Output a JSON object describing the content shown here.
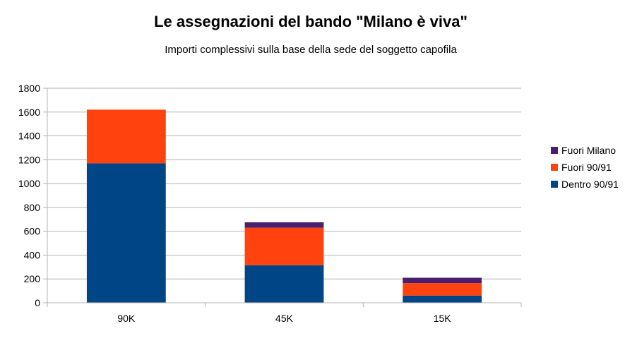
{
  "chart_data": {
    "type": "bar",
    "stacked": true,
    "title": "Le assegnazioni del bando \"Milano è viva\"",
    "subtitle": "Importi complessivi sulla base della sede del soggetto capofila",
    "xlabel": "",
    "ylabel": "",
    "categories": [
      "90K",
      "45K",
      "15K"
    ],
    "ylim": [
      0,
      1800
    ],
    "yticks": [
      0,
      200,
      400,
      600,
      800,
      1000,
      1200,
      1400,
      1600,
      1800
    ],
    "grid": true,
    "legend_position": "right",
    "series": [
      {
        "name": "Dentro 90/91",
        "color": "#004586",
        "values": [
          1170,
          315,
          60
        ]
      },
      {
        "name": "Fuori 90/91",
        "color": "#ff420e",
        "values": [
          450,
          315,
          105
        ]
      },
      {
        "name": "Fuori Milano",
        "color": "#4b1f6f",
        "values": [
          0,
          45,
          45
        ]
      }
    ],
    "legend_order": [
      "Fuori Milano",
      "Fuori 90/91",
      "Dentro 90/91"
    ]
  }
}
